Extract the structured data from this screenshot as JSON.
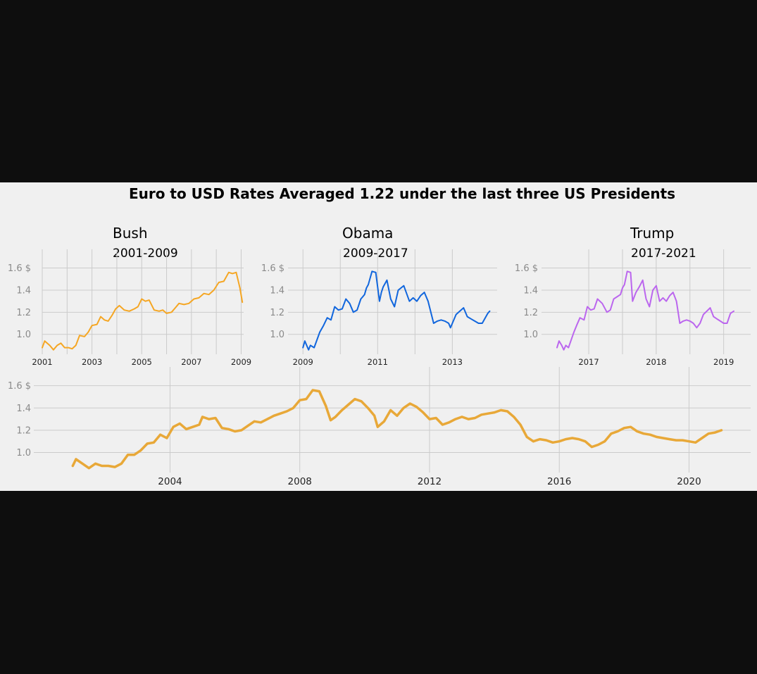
{
  "figure": {
    "title": "Euro to USD Rates Averaged 1.22 under the last three US Presidents",
    "colors": {
      "background": "#f0f0f0",
      "page": "#0e0e0e",
      "grid": "#cbcbcb"
    }
  },
  "chart_data": [
    {
      "type": "line",
      "id": "bush",
      "title": "Bush",
      "subtitle": "2001-2009",
      "color": "#f5a623",
      "xlim": [
        2001.0,
        2009.1
      ],
      "ylim": [
        0.82,
        1.68
      ],
      "yticks": [
        1.0,
        1.2,
        1.4,
        1.6
      ],
      "ytick_labels": [
        "1.0",
        "1.2",
        "1.4",
        "1.6 $"
      ],
      "xticks": [
        2001,
        2003,
        2005,
        2007,
        2009
      ],
      "xtick_labels": [
        "2001",
        "2003",
        "2005",
        "2007",
        "2009"
      ],
      "xgrid": [
        2001,
        2002,
        2003,
        2004,
        2005,
        2006,
        2007,
        2008,
        2009
      ],
      "grid": true,
      "series": [
        {
          "x": [
            2001.0,
            2001.1,
            2001.3,
            2001.45,
            2001.6,
            2001.75,
            2001.9,
            2002.05,
            2002.2,
            2002.35,
            2002.5,
            2002.7,
            2002.85,
            2003.0,
            2003.2,
            2003.35,
            2003.5,
            2003.65,
            2003.8,
            2003.95,
            2004.1,
            2004.3,
            2004.5,
            2004.7,
            2004.85,
            2005.0,
            2005.15,
            2005.3,
            2005.5,
            2005.7,
            2005.85,
            2006.0,
            2006.2,
            2006.35,
            2006.5,
            2006.7,
            2006.9,
            2007.1,
            2007.3,
            2007.5,
            2007.7,
            2007.9,
            2008.1,
            2008.3,
            2008.5,
            2008.65,
            2008.8,
            2008.95,
            2009.05
          ],
          "y": [
            0.88,
            0.94,
            0.9,
            0.86,
            0.9,
            0.92,
            0.88,
            0.88,
            0.87,
            0.9,
            0.99,
            0.98,
            1.02,
            1.08,
            1.09,
            1.16,
            1.13,
            1.12,
            1.17,
            1.23,
            1.26,
            1.22,
            1.21,
            1.23,
            1.25,
            1.32,
            1.3,
            1.31,
            1.22,
            1.21,
            1.22,
            1.19,
            1.2,
            1.24,
            1.28,
            1.27,
            1.28,
            1.32,
            1.33,
            1.37,
            1.36,
            1.4,
            1.47,
            1.48,
            1.56,
            1.55,
            1.56,
            1.42,
            1.29
          ]
        }
      ]
    },
    {
      "type": "line",
      "id": "obama",
      "title": "Obama",
      "subtitle": "2009-2017",
      "color": "#1166dd",
      "xlim": [
        2008.6,
        2014.2
      ],
      "ylim": [
        0.82,
        1.68
      ],
      "yticks": [
        1.0,
        1.2,
        1.4,
        1.6
      ],
      "ytick_labels": [
        "1.0",
        "1.2",
        "1.4",
        "1.6 $"
      ],
      "xticks": [
        2009,
        2011,
        2013
      ],
      "xtick_labels": [
        "2009",
        "2011",
        "2013"
      ],
      "xgrid": [
        2009,
        2010,
        2011,
        2012,
        2013
      ],
      "grid": true,
      "series": [
        {
          "x": [
            2009.0,
            2009.05,
            2009.1,
            2009.15,
            2009.2,
            2009.3,
            2009.45,
            2009.55,
            2009.65,
            2009.75,
            2009.85,
            2009.95,
            2010.05,
            2010.15,
            2010.25,
            2010.35,
            2010.45,
            2010.55,
            2010.6,
            2010.65,
            2010.7,
            2010.75,
            2010.85,
            2010.95,
            2011.05,
            2011.1,
            2011.15,
            2011.25,
            2011.35,
            2011.45,
            2011.55,
            2011.7,
            2011.85,
            2011.95,
            2012.05,
            2012.15,
            2012.25,
            2012.35,
            2012.5,
            2012.6,
            2012.7,
            2012.8,
            2012.9,
            2012.95,
            2013.0,
            2013.1,
            2013.2,
            2013.3,
            2013.4,
            2013.5,
            2013.6,
            2013.7,
            2013.8,
            2013.95,
            2014.0
          ],
          "y": [
            0.88,
            0.94,
            0.9,
            0.86,
            0.9,
            0.88,
            1.02,
            1.08,
            1.15,
            1.13,
            1.25,
            1.22,
            1.23,
            1.32,
            1.28,
            1.2,
            1.22,
            1.32,
            1.34,
            1.36,
            1.42,
            1.45,
            1.57,
            1.56,
            1.3,
            1.38,
            1.43,
            1.49,
            1.32,
            1.25,
            1.4,
            1.44,
            1.3,
            1.33,
            1.3,
            1.35,
            1.38,
            1.3,
            1.1,
            1.12,
            1.13,
            1.12,
            1.1,
            1.06,
            1.1,
            1.18,
            1.21,
            1.24,
            1.16,
            1.14,
            1.12,
            1.1,
            1.1,
            1.19,
            1.21
          ]
        }
      ]
    },
    {
      "type": "line",
      "id": "trump",
      "title": "Trump",
      "subtitle": "2017-2021",
      "color": "#bb66ee",
      "xlim": [
        2016.3,
        2019.4
      ],
      "ylim": [
        0.82,
        1.68
      ],
      "yticks": [
        1.0,
        1.2,
        1.4,
        1.6
      ],
      "ytick_labels": [
        "1.0",
        "1.2",
        "1.4",
        "1.6 $"
      ],
      "xticks": [
        2017,
        2018,
        2019
      ],
      "xtick_labels": [
        "2017",
        "2018",
        "2019"
      ],
      "xgrid": [
        2017,
        2017.5,
        2018,
        2018.5,
        2019
      ],
      "grid": true,
      "series": [
        {
          "x": [
            2016.53,
            2016.56,
            2016.6,
            2016.63,
            2016.66,
            2016.7,
            2016.78,
            2016.82,
            2016.87,
            2016.93,
            2016.98,
            2017.03,
            2017.08,
            2017.13,
            2017.2,
            2017.27,
            2017.32,
            2017.37,
            2017.42,
            2017.47,
            2017.5,
            2017.53,
            2017.57,
            2017.62,
            2017.65,
            2017.7,
            2017.75,
            2017.8,
            2017.85,
            2017.9,
            2017.95,
            2018.0,
            2018.05,
            2018.1,
            2018.15,
            2018.2,
            2018.25,
            2018.3,
            2018.35,
            2018.4,
            2018.45,
            2018.5,
            2018.55,
            2018.6,
            2018.65,
            2018.7,
            2018.75,
            2018.8,
            2018.85,
            2018.9,
            2018.95,
            2019.0,
            2019.05,
            2019.1,
            2019.15
          ],
          "y": [
            0.88,
            0.94,
            0.9,
            0.86,
            0.9,
            0.88,
            1.02,
            1.08,
            1.15,
            1.13,
            1.25,
            1.22,
            1.23,
            1.32,
            1.28,
            1.2,
            1.22,
            1.32,
            1.34,
            1.36,
            1.42,
            1.45,
            1.57,
            1.56,
            1.3,
            1.38,
            1.43,
            1.49,
            1.32,
            1.25,
            1.4,
            1.44,
            1.3,
            1.33,
            1.3,
            1.35,
            1.38,
            1.3,
            1.1,
            1.12,
            1.13,
            1.12,
            1.1,
            1.06,
            1.1,
            1.18,
            1.21,
            1.24,
            1.16,
            1.14,
            1.12,
            1.1,
            1.1,
            1.19,
            1.21
          ]
        }
      ]
    },
    {
      "type": "line",
      "id": "overall",
      "title": "",
      "color": "#e8a838",
      "xlim": [
        1999.8,
        2021.9
      ],
      "ylim": [
        0.82,
        1.68
      ],
      "yticks": [
        1.0,
        1.2,
        1.4,
        1.6
      ],
      "ytick_labels": [
        "1.0",
        "1.2",
        "1.4",
        "1.6 $"
      ],
      "xticks": [
        2004,
        2008,
        2012,
        2016,
        2020
      ],
      "xtick_labels": [
        "2004",
        "2008",
        "2012",
        "2016",
        "2020"
      ],
      "xgrid": [
        2004,
        2008,
        2012,
        2016,
        2020
      ],
      "grid": true,
      "series": [
        {
          "x": [
            2001.0,
            2001.1,
            2001.3,
            2001.5,
            2001.7,
            2001.9,
            2002.1,
            2002.3,
            2002.5,
            2002.7,
            2002.9,
            2003.1,
            2003.3,
            2003.5,
            2003.7,
            2003.9,
            2004.1,
            2004.3,
            2004.5,
            2004.7,
            2004.9,
            2005.0,
            2005.2,
            2005.4,
            2005.6,
            2005.8,
            2006.0,
            2006.2,
            2006.4,
            2006.6,
            2006.8,
            2007.0,
            2007.2,
            2007.4,
            2007.6,
            2007.8,
            2008.0,
            2008.2,
            2008.4,
            2008.6,
            2008.8,
            2008.95,
            2009.1,
            2009.3,
            2009.5,
            2009.7,
            2009.9,
            2010.1,
            2010.3,
            2010.4,
            2010.6,
            2010.8,
            2011.0,
            2011.2,
            2011.4,
            2011.6,
            2011.8,
            2012.0,
            2012.2,
            2012.4,
            2012.6,
            2012.8,
            2013.0,
            2013.2,
            2013.4,
            2013.6,
            2013.8,
            2014.0,
            2014.2,
            2014.4,
            2014.6,
            2014.8,
            2015.0,
            2015.2,
            2015.4,
            2015.6,
            2015.8,
            2016.0,
            2016.2,
            2016.4,
            2016.6,
            2016.8,
            2017.0,
            2017.2,
            2017.4,
            2017.6,
            2017.8,
            2018.0,
            2018.2,
            2018.4,
            2018.6,
            2018.8,
            2019.0,
            2019.2,
            2019.4,
            2019.6,
            2019.8,
            2020.0,
            2020.2,
            2020.4,
            2020.6,
            2020.8,
            2021.0
          ],
          "y": [
            0.88,
            0.94,
            0.9,
            0.86,
            0.9,
            0.88,
            0.88,
            0.87,
            0.9,
            0.98,
            0.98,
            1.02,
            1.08,
            1.09,
            1.16,
            1.13,
            1.23,
            1.26,
            1.21,
            1.23,
            1.25,
            1.32,
            1.3,
            1.31,
            1.22,
            1.21,
            1.19,
            1.2,
            1.24,
            1.28,
            1.27,
            1.3,
            1.33,
            1.35,
            1.37,
            1.4,
            1.47,
            1.48,
            1.56,
            1.55,
            1.42,
            1.29,
            1.32,
            1.38,
            1.43,
            1.48,
            1.46,
            1.4,
            1.33,
            1.23,
            1.28,
            1.38,
            1.33,
            1.4,
            1.44,
            1.41,
            1.36,
            1.3,
            1.31,
            1.25,
            1.27,
            1.3,
            1.32,
            1.3,
            1.31,
            1.34,
            1.35,
            1.36,
            1.38,
            1.37,
            1.32,
            1.25,
            1.14,
            1.1,
            1.12,
            1.11,
            1.09,
            1.1,
            1.12,
            1.13,
            1.12,
            1.1,
            1.05,
            1.07,
            1.1,
            1.17,
            1.19,
            1.22,
            1.23,
            1.19,
            1.17,
            1.16,
            1.14,
            1.13,
            1.12,
            1.11,
            1.11,
            1.1,
            1.09,
            1.13,
            1.17,
            1.18,
            1.2
          ]
        }
      ]
    }
  ]
}
